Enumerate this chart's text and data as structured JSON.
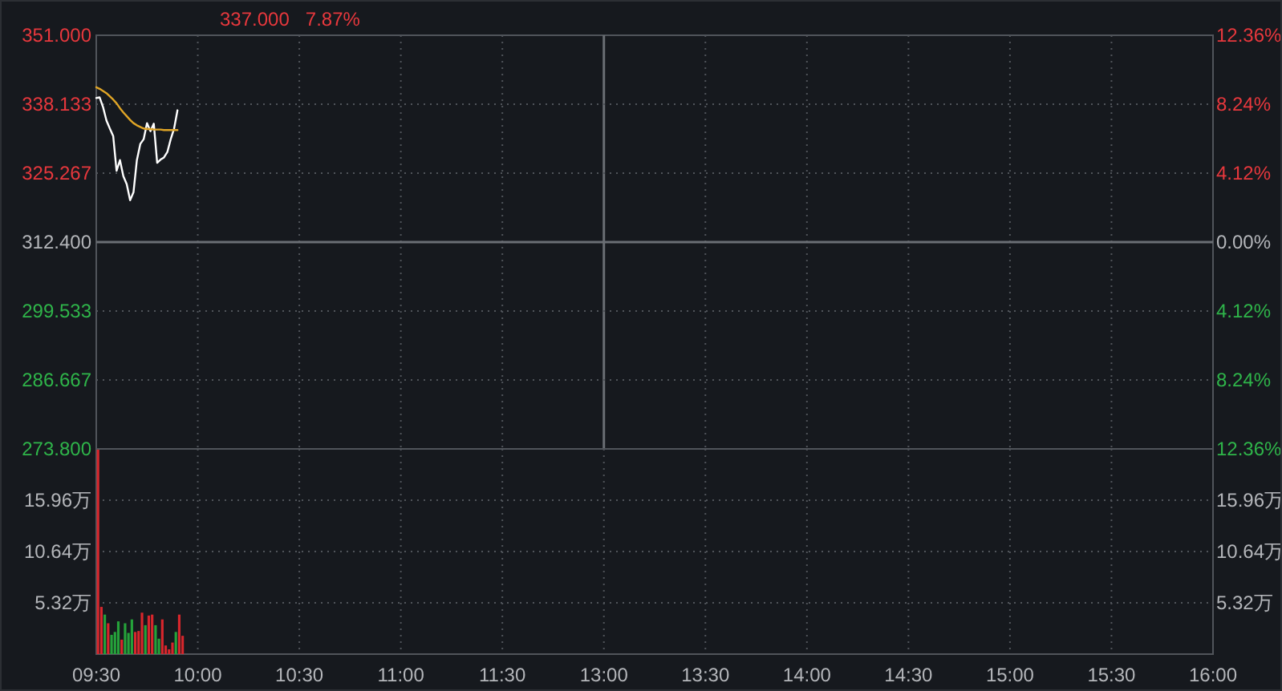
{
  "chart_data": [
    {
      "type": "line",
      "annotations": [
        "337.000",
        "7.87%"
      ],
      "tick_labels": "y",
      "ylim": [
        273.8,
        351
      ],
      "yticks": [
        {
          "value": 273.8,
          "label": "273.800"
        },
        {
          "value": 286.667,
          "label": "286.667"
        },
        {
          "value": 299.533,
          "label": "299.533"
        },
        {
          "value": 312.4,
          "label": "312.400"
        },
        {
          "value": 325.267,
          "label": "325.267"
        },
        {
          "value": 338.133,
          "label": "338.133"
        },
        {
          "value": 351,
          "label": "351.000"
        }
      ],
      "y2lim": [
        -12.36,
        12.36
      ],
      "y2ticks": [
        {
          "value": -12.36,
          "label": "12.36%"
        },
        {
          "value": -8.24,
          "label": "8.24%"
        },
        {
          "value": -4.12,
          "label": "4.12%"
        },
        {
          "value": 0,
          "label": "0.00%"
        },
        {
          "value": 4.12,
          "label": "4.12%"
        },
        {
          "value": 8.24,
          "label": "8.24%"
        },
        {
          "value": 12.36,
          "label": "12.36%"
        }
      ],
      "grid": true,
      "series": [
        {
          "color": "#ffffff",
          "values": [
            339.3,
            339.4,
            337.6,
            335.1,
            333.6,
            332.2,
            325.7,
            327.7,
            324.7,
            323.2,
            320.2,
            321.7,
            327.7,
            330.7,
            331.6,
            334.6,
            333.1,
            334.5,
            327.2,
            327.8,
            328.2,
            329.2,
            331.6,
            333.6,
            337.0,
            null,
            null,
            null,
            null,
            null,
            null,
            null,
            null,
            null,
            null,
            null,
            null,
            null,
            null,
            null,
            null,
            null,
            null,
            null,
            null,
            null,
            null,
            null,
            null,
            null,
            null,
            null,
            null,
            null,
            null,
            null,
            null,
            null,
            null,
            null,
            null,
            null,
            null,
            null,
            null,
            null,
            null,
            null,
            null,
            null,
            null,
            null,
            null,
            null,
            null,
            null,
            null,
            null,
            null,
            null,
            null,
            null,
            null,
            null,
            null,
            null,
            null,
            null,
            null,
            null,
            null,
            null,
            null,
            null,
            null,
            null,
            null,
            null,
            null,
            null,
            null,
            null,
            null,
            null,
            null,
            null,
            null,
            null,
            null,
            null,
            null,
            null,
            null,
            null,
            null,
            null,
            null,
            null,
            null,
            null,
            null,
            null,
            null,
            null,
            null,
            null,
            null,
            null,
            null,
            null,
            null,
            null,
            null,
            null,
            null,
            null,
            null,
            null,
            null,
            null,
            null,
            null,
            null,
            null,
            null,
            null,
            null,
            null,
            null,
            null,
            null,
            null,
            null,
            null,
            null,
            null,
            null,
            null,
            null,
            null,
            null,
            null,
            null,
            null,
            null,
            null,
            null,
            null,
            null,
            null,
            null,
            null,
            null,
            null,
            null,
            null,
            null,
            null,
            null,
            null,
            null,
            null,
            null,
            null,
            null,
            null,
            null,
            null,
            null,
            null,
            null,
            null,
            null,
            null,
            null,
            null,
            null,
            null,
            null,
            null,
            null,
            null,
            null,
            null,
            null,
            null,
            null,
            null,
            null,
            null,
            null,
            null,
            null,
            null,
            null,
            null,
            null,
            null,
            null,
            null,
            null,
            null,
            null,
            null,
            null,
            null,
            null,
            null,
            null,
            null,
            null,
            null,
            null,
            null,
            null,
            null,
            null,
            null,
            null,
            null,
            null,
            null,
            null,
            null,
            null,
            null,
            null,
            null,
            null,
            null,
            null,
            null,
            null,
            null,
            null,
            null,
            null,
            null,
            null,
            null,
            null,
            null,
            null,
            null,
            null,
            null,
            null,
            null,
            null,
            null,
            null,
            null,
            null,
            null,
            null,
            null,
            null,
            null,
            null,
            null,
            null,
            null,
            null,
            null,
            null,
            null,
            null,
            null,
            null,
            null,
            null,
            null,
            null,
            null,
            null,
            null,
            null,
            null,
            null,
            null,
            null,
            null,
            null,
            null,
            null,
            null,
            null,
            null,
            null,
            null,
            null,
            null,
            null,
            null,
            null,
            null,
            null,
            null,
            null,
            null,
            null,
            null,
            null,
            null,
            null,
            null,
            null,
            null,
            null,
            null,
            null
          ]
        },
        {
          "color": "#e0a526",
          "values": [
            341.3,
            341.0,
            340.6,
            340.2,
            339.6,
            339.0,
            338.3,
            337.4,
            336.6,
            335.9,
            335.2,
            334.6,
            334.2,
            333.9,
            333.6,
            333.5,
            333.5,
            333.4,
            333.4,
            333.4,
            333.3,
            333.3,
            333.3,
            333.3,
            333.3,
            null,
            null,
            null,
            null,
            null,
            null,
            null,
            null,
            null,
            null,
            null,
            null,
            null,
            null,
            null,
            null,
            null,
            null,
            null,
            null,
            null,
            null,
            null,
            null,
            null,
            null,
            null,
            null,
            null,
            null,
            null,
            null,
            null,
            null,
            null,
            null,
            null,
            null,
            null,
            null,
            null,
            null,
            null,
            null,
            null,
            null,
            null,
            null,
            null,
            null,
            null,
            null,
            null,
            null,
            null,
            null,
            null,
            null,
            null,
            null,
            null,
            null,
            null,
            null,
            null,
            null,
            null,
            null,
            null,
            null,
            null,
            null,
            null,
            null,
            null,
            null,
            null,
            null,
            null,
            null,
            null,
            null,
            null,
            null,
            null,
            null,
            null,
            null,
            null,
            null,
            null,
            null,
            null,
            null,
            null,
            null,
            null,
            null,
            null,
            null,
            null,
            null,
            null,
            null,
            null,
            null,
            null,
            null,
            null,
            null,
            null,
            null,
            null,
            null,
            null,
            null,
            null,
            null,
            null,
            null,
            null,
            null,
            null,
            null,
            null,
            null,
            null,
            null,
            null,
            null,
            null,
            null,
            null,
            null,
            null,
            null,
            null,
            null,
            null,
            null,
            null,
            null,
            null,
            null,
            null,
            null,
            null,
            null,
            null,
            null,
            null,
            null,
            null,
            null,
            null,
            null,
            null,
            null,
            null,
            null,
            null,
            null,
            null,
            null,
            null,
            null,
            null,
            null,
            null,
            null,
            null,
            null,
            null,
            null,
            null,
            null,
            null,
            null,
            null,
            null,
            null,
            null,
            null,
            null,
            null,
            null,
            null,
            null,
            null,
            null,
            null,
            null,
            null,
            null,
            null,
            null,
            null,
            null,
            null,
            null,
            null,
            null,
            null,
            null,
            null,
            null,
            null,
            null,
            null,
            null,
            null,
            null,
            null,
            null,
            null,
            null,
            null,
            null,
            null,
            null,
            null,
            null,
            null,
            null,
            null,
            null,
            null,
            null,
            null,
            null,
            null,
            null,
            null,
            null,
            null,
            null,
            null,
            null,
            null,
            null,
            null,
            null,
            null,
            null,
            null,
            null,
            null,
            null,
            null,
            null,
            null,
            null,
            null,
            null,
            null,
            null,
            null,
            null,
            null,
            null,
            null,
            null,
            null,
            null,
            null,
            null,
            null,
            null,
            null,
            null,
            null,
            null,
            null,
            null,
            null,
            null,
            null,
            null,
            null,
            null,
            null,
            null,
            null,
            null,
            null,
            null,
            null,
            null,
            null,
            null,
            null,
            null,
            null,
            null,
            null,
            null,
            null,
            null,
            null,
            null,
            null,
            null,
            null,
            null,
            null,
            null
          ]
        }
      ]
    },
    {
      "type": "bar",
      "categories": [
        "09:30",
        null,
        null,
        null,
        null,
        null,
        null,
        null,
        null,
        null,
        null,
        null,
        null,
        null,
        null,
        null,
        null,
        null,
        null,
        null,
        null,
        null,
        null,
        null,
        null,
        null,
        null,
        null,
        null,
        null,
        "10:00",
        null,
        null,
        null,
        null,
        null,
        null,
        null,
        null,
        null,
        null,
        null,
        null,
        null,
        null,
        null,
        null,
        null,
        null,
        null,
        null,
        null,
        null,
        null,
        null,
        null,
        null,
        null,
        null,
        null,
        "10:30",
        null,
        null,
        null,
        null,
        null,
        null,
        null,
        null,
        null,
        null,
        null,
        null,
        null,
        null,
        null,
        null,
        null,
        null,
        null,
        null,
        null,
        null,
        null,
        null,
        null,
        null,
        null,
        null,
        null,
        "11:00",
        null,
        null,
        null,
        null,
        null,
        null,
        null,
        null,
        null,
        null,
        null,
        null,
        null,
        null,
        null,
        null,
        null,
        null,
        null,
        null,
        null,
        null,
        null,
        null,
        null,
        null,
        null,
        null,
        null,
        "11:30",
        null,
        null,
        null,
        null,
        null,
        null,
        null,
        null,
        null,
        null,
        null,
        null,
        null,
        null,
        null,
        null,
        null,
        null,
        null,
        null,
        null,
        null,
        null,
        null,
        null,
        null,
        null,
        null,
        null,
        "13:00",
        null,
        null,
        null,
        null,
        null,
        null,
        null,
        null,
        null,
        null,
        null,
        null,
        null,
        null,
        null,
        null,
        null,
        null,
        null,
        null,
        null,
        null,
        null,
        null,
        null,
        null,
        null,
        null,
        null,
        "13:30",
        null,
        null,
        null,
        null,
        null,
        null,
        null,
        null,
        null,
        null,
        null,
        null,
        null,
        null,
        null,
        null,
        null,
        null,
        null,
        null,
        null,
        null,
        null,
        null,
        null,
        null,
        null,
        null,
        null,
        "14:00",
        null,
        null,
        null,
        null,
        null,
        null,
        null,
        null,
        null,
        null,
        null,
        null,
        null,
        null,
        null,
        null,
        null,
        null,
        null,
        null,
        null,
        null,
        null,
        null,
        null,
        null,
        null,
        null,
        null,
        "14:30",
        null,
        null,
        null,
        null,
        null,
        null,
        null,
        null,
        null,
        null,
        null,
        null,
        null,
        null,
        null,
        null,
        null,
        null,
        null,
        null,
        null,
        null,
        null,
        null,
        null,
        null,
        null,
        null,
        null,
        "15:00",
        null,
        null,
        null,
        null,
        null,
        null,
        null,
        null,
        null,
        null,
        null,
        null,
        null,
        null,
        null,
        null,
        null,
        null,
        null,
        null,
        null,
        null,
        null,
        null,
        null,
        null,
        null,
        null,
        null,
        "15:30",
        null,
        null,
        null,
        null,
        null,
        null,
        null,
        null,
        null,
        null,
        null,
        null,
        null,
        null,
        null,
        null,
        null,
        null,
        null,
        null,
        null,
        null,
        null,
        null,
        null,
        null,
        null,
        null,
        null,
        "16:00"
      ],
      "ylim": [
        0,
        21.28
      ],
      "yticks": [
        {
          "value": 5.32,
          "label": "5.32万"
        },
        {
          "value": 10.64,
          "label": "10.64万"
        },
        {
          "value": 15.96,
          "label": "15.96万"
        }
      ],
      "y2lim": [
        0,
        21.28
      ],
      "y2ticks": [
        {
          "value": 5.32,
          "label": "5.32万"
        },
        {
          "value": 10.64,
          "label": "10.64万"
        },
        {
          "value": 15.96,
          "label": "15.96万"
        }
      ],
      "grid": true,
      "values": [
        21.2,
        4.9,
        4.1,
        3.2,
        2.0,
        2.3,
        3.4,
        1.5,
        3.2,
        2.2,
        3.6,
        2.3,
        2.4,
        4.3,
        3.0,
        4.0,
        4.1,
        3.0,
        1.6,
        3.6,
        0.9,
        0.5,
        1.2,
        2.3,
        4.1,
        1.9,
        null,
        null,
        null,
        null,
        null,
        null,
        null,
        null,
        null,
        null,
        null,
        null,
        null,
        null,
        null,
        null,
        null,
        null,
        null,
        null,
        null,
        null,
        null,
        null,
        null,
        null,
        null,
        null,
        null,
        null,
        null,
        null,
        null,
        null,
        null,
        null,
        null,
        null,
        null,
        null,
        null,
        null,
        null,
        null,
        null,
        null,
        null,
        null,
        null,
        null,
        null,
        null,
        null,
        null,
        null,
        null,
        null,
        null,
        null,
        null,
        null,
        null,
        null,
        null,
        null,
        null,
        null,
        null,
        null,
        null,
        null,
        null,
        null,
        null,
        null,
        null,
        null,
        null,
        null,
        null,
        null,
        null,
        null,
        null,
        null,
        null,
        null,
        null,
        null,
        null,
        null,
        null,
        null,
        null,
        null,
        null,
        null,
        null,
        null,
        null,
        null,
        null,
        null,
        null,
        null,
        null,
        null,
        null,
        null,
        null,
        null,
        null,
        null,
        null,
        null,
        null,
        null,
        null,
        null,
        null,
        null,
        null,
        null,
        null,
        null,
        null,
        null,
        null,
        null,
        null,
        null,
        null,
        null,
        null,
        null,
        null,
        null,
        null,
        null,
        null,
        null,
        null,
        null,
        null,
        null,
        null,
        null,
        null,
        null,
        null,
        null,
        null,
        null,
        null,
        null,
        null,
        null,
        null,
        null,
        null,
        null,
        null,
        null,
        null,
        null,
        null,
        null,
        null,
        null,
        null,
        null,
        null,
        null,
        null,
        null,
        null,
        null,
        null,
        null,
        null,
        null,
        null,
        null,
        null,
        null,
        null,
        null,
        null,
        null,
        null,
        null,
        null,
        null,
        null,
        null,
        null,
        null,
        null,
        null,
        null,
        null,
        null,
        null,
        null,
        null,
        null,
        null,
        null,
        null,
        null,
        null,
        null,
        null,
        null,
        null,
        null,
        null,
        null,
        null,
        null,
        null,
        null,
        null,
        null,
        null,
        null,
        null,
        null,
        null,
        null,
        null,
        null,
        null,
        null,
        null,
        null,
        null,
        null,
        null,
        null,
        null,
        null,
        null,
        null,
        null,
        null,
        null,
        null,
        null,
        null,
        null,
        null,
        null,
        null,
        null,
        null,
        null,
        null,
        null,
        null,
        null,
        null,
        null,
        null,
        null,
        null,
        null,
        null,
        null,
        null,
        null,
        null,
        null,
        null,
        null,
        null,
        null,
        null,
        null,
        null,
        null,
        null,
        null,
        null,
        null,
        null,
        null,
        null,
        null,
        null,
        null,
        null,
        null,
        null,
        null,
        null,
        null,
        null,
        null,
        null,
        null,
        null,
        null,
        null,
        null
      ],
      "colors": [
        "#d7262c",
        "#d7262c",
        "#25a23a",
        "#d7262c",
        "#25a23a",
        "#25a23a",
        "#25a23a",
        "#d7262c",
        "#25a23a",
        "#25a23a",
        "#25a23a",
        "#d7262c",
        "#d7262c",
        "#d7262c",
        "#25a23a",
        "#d7262c",
        "#d7262c",
        "#25a23a",
        "#25a23a",
        "#d7262c",
        "#d7262c",
        "#d7262c",
        "#d7262c",
        "#25a23a",
        "#d7262c",
        "#d7262c",
        null,
        null,
        null,
        null,
        null,
        null,
        null,
        null,
        null,
        null,
        null,
        null,
        null,
        null,
        null,
        null,
        null,
        null,
        null,
        null,
        null,
        null,
        null,
        null,
        null,
        null,
        null,
        null,
        null,
        null,
        null,
        null,
        null,
        null,
        null,
        null,
        null,
        null,
        null,
        null,
        null,
        null,
        null,
        null,
        null,
        null,
        null,
        null,
        null,
        null,
        null,
        null,
        null,
        null,
        null,
        null,
        null,
        null,
        null,
        null,
        null,
        null,
        null,
        null,
        null,
        null,
        null,
        null,
        null,
        null,
        null,
        null,
        null,
        null,
        null,
        null,
        null,
        null,
        null,
        null,
        null,
        null,
        null,
        null,
        null,
        null,
        null,
        null,
        null,
        null,
        null,
        null,
        null,
        null,
        null,
        null,
        null,
        null,
        null,
        null,
        null,
        null,
        null,
        null,
        null,
        null,
        null,
        null,
        null,
        null,
        null,
        null,
        null,
        null,
        null,
        null,
        null,
        null,
        null,
        null,
        null,
        null,
        null,
        null,
        null,
        null,
        null,
        null,
        null,
        null,
        null,
        null,
        null,
        null,
        null,
        null,
        null,
        null,
        null,
        null,
        null,
        null,
        null,
        null,
        null,
        null,
        null,
        null,
        null,
        null,
        null,
        null,
        null,
        null,
        null,
        null,
        null,
        null,
        null,
        null,
        null,
        null,
        null,
        null,
        null,
        null,
        null,
        null,
        null,
        null,
        null,
        null,
        null,
        null,
        null,
        null,
        null,
        null,
        null,
        null,
        null,
        null,
        null,
        null,
        null,
        null,
        null,
        null,
        null,
        null,
        null,
        null,
        null,
        null,
        null,
        null,
        null,
        null,
        null,
        null,
        null,
        null,
        null,
        null,
        null,
        null,
        null,
        null,
        null,
        null,
        null,
        null,
        null,
        null,
        null,
        null,
        null,
        null,
        null,
        null,
        null,
        null,
        null,
        null,
        null,
        null,
        null,
        null,
        null,
        null,
        null,
        null,
        null,
        null,
        null,
        null,
        null,
        null,
        null,
        null,
        null,
        null,
        null,
        null,
        null,
        null,
        null,
        null,
        null,
        null,
        null,
        null,
        null,
        null,
        null,
        null,
        null,
        null,
        null,
        null,
        null,
        null,
        null,
        null,
        null,
        null,
        null,
        null,
        null,
        null,
        null,
        null,
        null,
        null,
        null,
        null,
        null,
        null,
        null,
        null,
        null,
        null,
        null,
        null,
        null,
        null,
        null,
        null,
        null,
        null,
        null,
        null,
        null,
        null,
        null,
        null,
        null,
        null,
        null,
        null,
        null,
        null,
        null,
        null,
        null
      ]
    }
  ]
}
